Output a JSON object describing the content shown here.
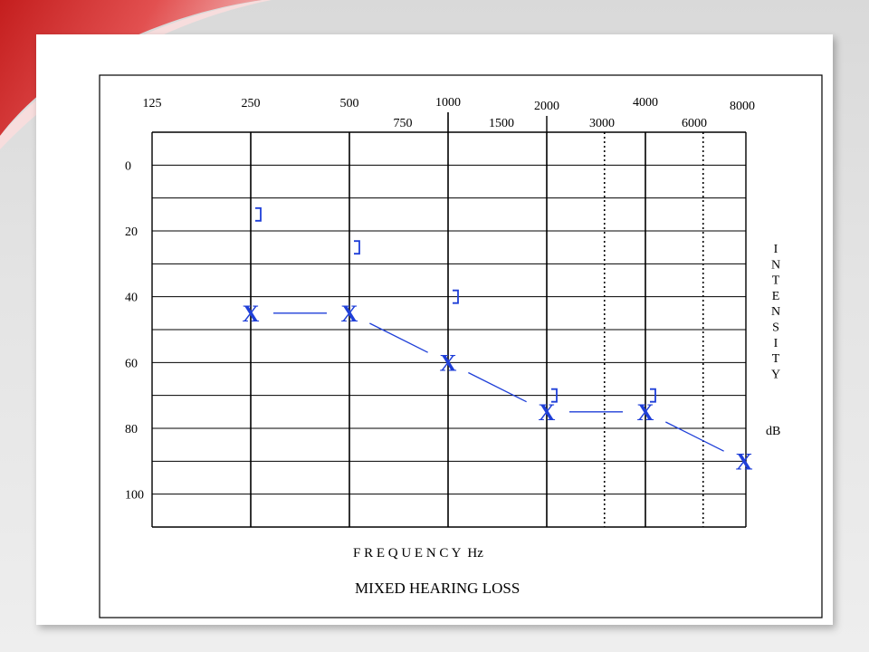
{
  "colors": {
    "accent_red": "#d42a2a",
    "marker_blue": "#1f3fd8",
    "grid": "#000000"
  },
  "chart_data": {
    "type": "scatter",
    "title": "MIXED HEARING LOSS",
    "xlabel": "F R E Q U E N C Y  Hz",
    "ylabel": "I N T E N S I T Y",
    "yunit": "dB",
    "x_scale": "log",
    "y_inverted": true,
    "ylim": [
      -10,
      110
    ],
    "ytick_labels": [
      "0",
      "20",
      "40",
      "60",
      "80",
      "100"
    ],
    "octave_tick_labels": [
      "125",
      "250",
      "500",
      "1000",
      "2000",
      "4000",
      "8000"
    ],
    "mid_tick_labels": [
      "750",
      "1500",
      "3000",
      "6000"
    ],
    "grid": true,
    "series": [
      {
        "marker": "X",
        "x": [
          250,
          500,
          1000,
          2000,
          4000,
          8000
        ],
        "y": [
          45,
          45,
          60,
          75,
          75,
          90
        ]
      },
      {
        "marker": "]",
        "x": [
          250,
          500,
          1000,
          2000,
          4000
        ],
        "y": [
          15,
          25,
          40,
          70,
          70
        ]
      }
    ]
  }
}
